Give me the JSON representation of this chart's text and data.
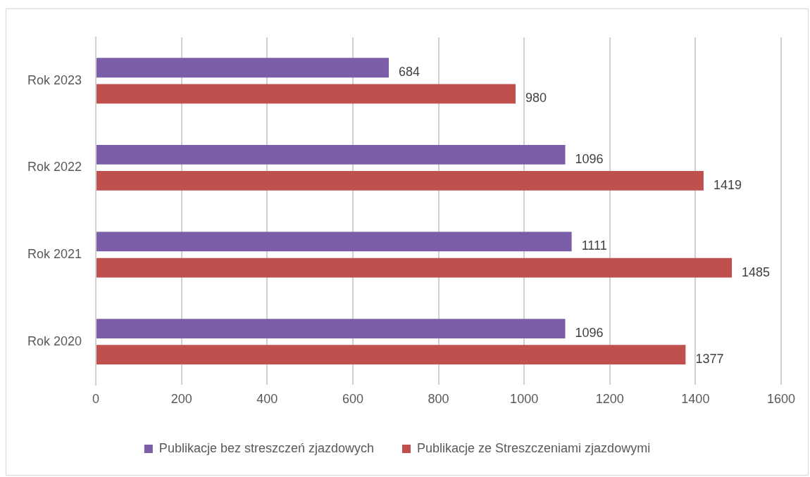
{
  "chart_data": {
    "type": "bar",
    "orientation": "horizontal",
    "categories": [
      "Rok 2023",
      "Rok 2022",
      "Rok 2021",
      "Rok 2020"
    ],
    "series": [
      {
        "name": "Publikacje bez streszczeń zjazdowych",
        "color": "#7b5ea7",
        "values": [
          684,
          1096,
          1111,
          1096
        ]
      },
      {
        "name": "Publikacje ze Streszczeniami zjazdowymi",
        "color": "#c0504d",
        "values": [
          980,
          1419,
          1485,
          1377
        ]
      }
    ],
    "xlim": [
      0,
      1600
    ],
    "xticks": [
      0,
      200,
      400,
      600,
      800,
      1000,
      1200,
      1400,
      1600
    ],
    "grid": "x",
    "legend": "bottom",
    "data_labels": true
  }
}
